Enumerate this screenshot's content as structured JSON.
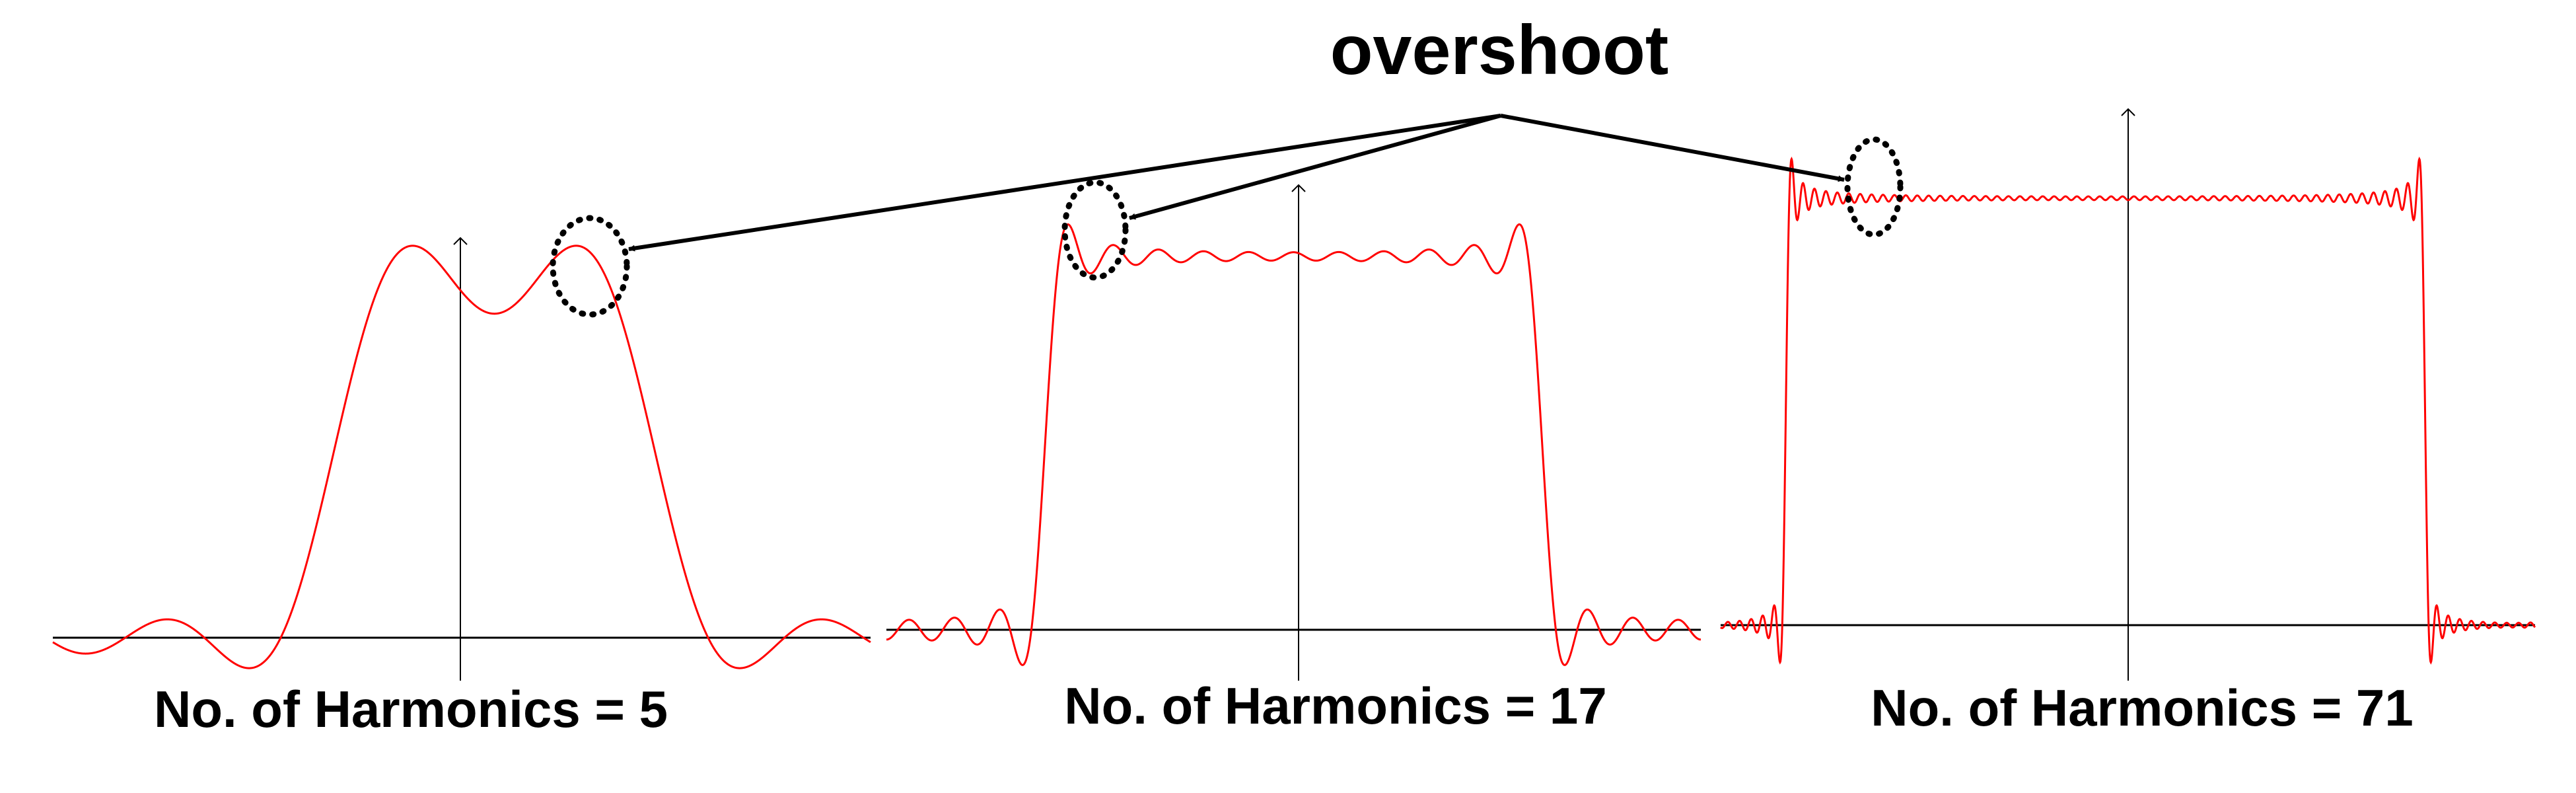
{
  "annotation": {
    "label": "overshoot"
  },
  "colors": {
    "curve": "#ff0000",
    "axis": "#000000",
    "marker": "#000000",
    "background": "#ffffff"
  },
  "panels": [
    {
      "caption": "No. of Harmonics = 5",
      "harmonics": 5
    },
    {
      "caption": "No. of Harmonics = 17",
      "harmonics": 17
    },
    {
      "caption": "No. of Harmonics = 71",
      "harmonics": 71
    }
  ]
}
